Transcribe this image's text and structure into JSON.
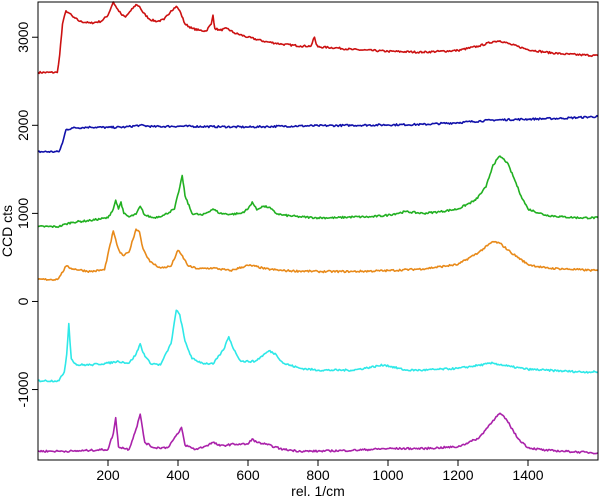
{
  "chart_data": {
    "type": "line",
    "xlabel": "rel. 1/cm",
    "ylabel": "CCD cts",
    "xlim": [
      0,
      1600
    ],
    "ylim": [
      -1800,
      3400
    ],
    "xticks": [
      200,
      400,
      600,
      800,
      1000,
      1200,
      1400
    ],
    "yticks": [
      -1000,
      0,
      1000,
      2000,
      3000
    ],
    "grid": false,
    "legend": "none",
    "series": [
      {
        "color": "#cc1111",
        "x": [
          0,
          55,
          62,
          70,
          80,
          90,
          100,
          120,
          150,
          180,
          200,
          215,
          225,
          240,
          250,
          265,
          280,
          290,
          300,
          320,
          340,
          360,
          380,
          395,
          405,
          420,
          440,
          460,
          480,
          495,
          500,
          505,
          520,
          540,
          560,
          600,
          650,
          700,
          750,
          780,
          790,
          795,
          800,
          850,
          900,
          1000,
          1100,
          1200,
          1260,
          1300,
          1320,
          1350,
          1400,
          1450,
          1500,
          1550,
          1600
        ],
        "y": [
          2600,
          2600,
          2800,
          3150,
          3300,
          3270,
          3230,
          3180,
          3160,
          3180,
          3250,
          3400,
          3330,
          3250,
          3230,
          3300,
          3370,
          3350,
          3280,
          3200,
          3180,
          3200,
          3300,
          3350,
          3300,
          3150,
          3100,
          3080,
          3070,
          3150,
          3250,
          3100,
          3080,
          3100,
          3050,
          3000,
          2950,
          2920,
          2900,
          2900,
          3000,
          2920,
          2890,
          2880,
          2860,
          2840,
          2830,
          2850,
          2900,
          2950,
          2960,
          2920,
          2860,
          2830,
          2810,
          2800,
          2790
        ]
      },
      {
        "color": "#1111aa",
        "x": [
          0,
          60,
          70,
          80,
          100,
          150,
          200,
          250,
          290,
          330,
          400,
          500,
          600,
          700,
          800,
          900,
          1000,
          1100,
          1200,
          1300,
          1400,
          1500,
          1600
        ],
        "y": [
          1700,
          1700,
          1800,
          1950,
          1970,
          1980,
          1975,
          1980,
          2000,
          1985,
          1990,
          1985,
          1980,
          1990,
          1995,
          2000,
          2005,
          2010,
          2030,
          2060,
          2070,
          2080,
          2100
        ]
      },
      {
        "color": "#22b022",
        "x": [
          0,
          60,
          80,
          100,
          150,
          200,
          215,
          222,
          230,
          237,
          245,
          260,
          280,
          292,
          305,
          330,
          360,
          390,
          405,
          412,
          420,
          440,
          470,
          500,
          520,
          550,
          580,
          600,
          612,
          625,
          640,
          660,
          680,
          700,
          750,
          800,
          850,
          900,
          950,
          1000,
          1050,
          1100,
          1150,
          1200,
          1250,
          1280,
          1300,
          1320,
          1340,
          1360,
          1380,
          1400,
          1450,
          1500,
          1550,
          1600
        ],
        "y": [
          850,
          850,
          880,
          900,
          920,
          950,
          1050,
          1150,
          1050,
          1130,
          1000,
          960,
          990,
          1080,
          980,
          950,
          980,
          1050,
          1300,
          1430,
          1200,
          1000,
          980,
          1050,
          1000,
          990,
          1000,
          1050,
          1130,
          1040,
          1080,
          1070,
          1000,
          980,
          960,
          950,
          950,
          960,
          960,
          980,
          1020,
          1000,
          1020,
          1050,
          1150,
          1300,
          1550,
          1650,
          1580,
          1400,
          1200,
          1050,
          980,
          960,
          950,
          950
        ]
      },
      {
        "color": "#e88a1a",
        "x": [
          0,
          55,
          65,
          80,
          100,
          150,
          190,
          215,
          225,
          235,
          245,
          260,
          280,
          290,
          300,
          320,
          350,
          380,
          400,
          410,
          430,
          460,
          500,
          550,
          600,
          620,
          650,
          700,
          800,
          900,
          1000,
          1100,
          1200,
          1260,
          1300,
          1320,
          1350,
          1400,
          1450,
          1500,
          1550,
          1600
        ],
        "y": [
          250,
          250,
          300,
          400,
          370,
          340,
          360,
          800,
          650,
          550,
          520,
          560,
          820,
          790,
          600,
          450,
          380,
          400,
          580,
          530,
          400,
          370,
          380,
          350,
          410,
          400,
          370,
          350,
          340,
          340,
          350,
          370,
          420,
          560,
          680,
          660,
          560,
          420,
          380,
          370,
          360,
          350
        ]
      },
      {
        "color": "#2ee8e8",
        "x": [
          0,
          60,
          75,
          82,
          88,
          95,
          110,
          150,
          200,
          230,
          260,
          280,
          292,
          300,
          320,
          350,
          380,
          395,
          405,
          420,
          440,
          470,
          500,
          530,
          545,
          560,
          580,
          620,
          660,
          680,
          700,
          750,
          800,
          900,
          990,
          1050,
          1100,
          1200,
          1300,
          1350,
          1400,
          1450,
          1500,
          1550,
          1600
        ],
        "y": [
          -900,
          -900,
          -800,
          -600,
          -250,
          -650,
          -720,
          -720,
          -700,
          -680,
          -700,
          -600,
          -480,
          -580,
          -700,
          -720,
          -480,
          -100,
          -150,
          -450,
          -650,
          -700,
          -710,
          -550,
          -400,
          -550,
          -680,
          -680,
          -560,
          -600,
          -700,
          -760,
          -780,
          -780,
          -720,
          -780,
          -780,
          -760,
          -700,
          -740,
          -770,
          -780,
          -790,
          -800,
          -800
        ]
      },
      {
        "color": "#aa22aa",
        "x": [
          0,
          60,
          100,
          150,
          200,
          215,
          222,
          230,
          260,
          280,
          292,
          305,
          330,
          370,
          400,
          410,
          420,
          450,
          480,
          500,
          520,
          560,
          600,
          612,
          625,
          650,
          700,
          750,
          800,
          900,
          1000,
          1100,
          1200,
          1260,
          1300,
          1320,
          1340,
          1370,
          1400,
          1450,
          1500,
          1550,
          1600
        ],
        "y": [
          -1700,
          -1700,
          -1700,
          -1690,
          -1680,
          -1500,
          -1320,
          -1650,
          -1680,
          -1450,
          -1280,
          -1600,
          -1660,
          -1660,
          -1500,
          -1430,
          -1630,
          -1680,
          -1640,
          -1600,
          -1640,
          -1620,
          -1620,
          -1560,
          -1600,
          -1620,
          -1680,
          -1700,
          -1700,
          -1690,
          -1670,
          -1670,
          -1650,
          -1550,
          -1350,
          -1270,
          -1350,
          -1550,
          -1660,
          -1690,
          -1700,
          -1710,
          -1720
        ]
      }
    ]
  }
}
